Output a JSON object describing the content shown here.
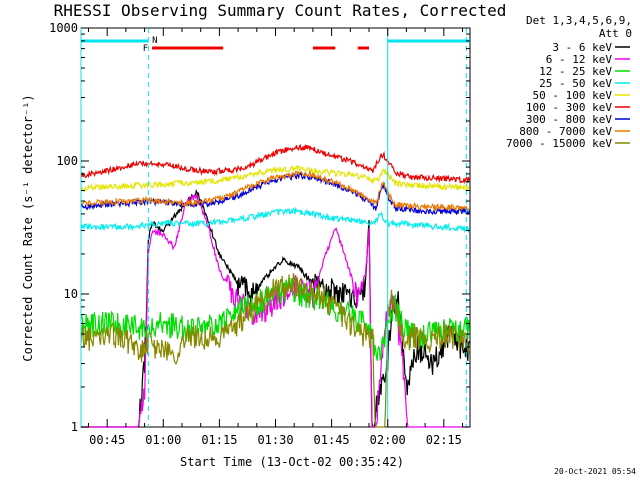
{
  "chart_data": {
    "type": "line",
    "title": "RHESSI Observing Summary Count Rates, Corrected",
    "xlabel": "Start Time (13-Oct-02 00:35:42)",
    "ylabel": "Corrected Count Rate (s⁻¹ detector⁻¹)",
    "y_scale": "log",
    "ylim": [
      1,
      1000
    ],
    "y_ticks": [
      "1",
      "10",
      "100",
      "1000"
    ],
    "xlim_min": [
      38,
      142
    ],
    "x_ticks": [
      "00:45",
      "01:00",
      "01:15",
      "01:30",
      "01:45",
      "02:00",
      "02:15"
    ],
    "x_tick_min": [
      45,
      60,
      75,
      90,
      105,
      120,
      135
    ],
    "legend_header": [
      "Det 1,3,4,5,6,9,",
      "Att 0"
    ],
    "legend_position": "right",
    "timestamp": "20-Oct-2021 05:54",
    "flags": {
      "night_label": "N",
      "flare_label": "F",
      "night_color": "#00e5ee",
      "flare_color": "#ee0000",
      "night_intervals": [
        [
          38,
          56
        ],
        [
          120,
          142
        ]
      ],
      "flare_intervals": [
        [
          57,
          76
        ],
        [
          100,
          106
        ],
        [
          112,
          115
        ]
      ],
      "dashed_lines_min": [
        56,
        141
      ],
      "solid_lines_min": [
        38,
        120
      ]
    },
    "series": [
      {
        "name": "3 - 6 keV",
        "color": "#000000",
        "x": [
          38,
          52,
          54,
          55,
          56,
          57,
          60,
          65,
          69,
          72,
          75,
          80,
          84,
          88,
          92,
          96,
          100,
          104,
          108,
          112,
          114,
          115,
          116,
          117,
          120,
          121,
          123,
          125,
          128,
          132,
          136,
          140
        ],
        "y": [
          0,
          0,
          1.5,
          3,
          25,
          35,
          30,
          45,
          60,
          35,
          20,
          12,
          10,
          14,
          18,
          16,
          12,
          11,
          10,
          9,
          12,
          35,
          0,
          1.5,
          3,
          8,
          9,
          2,
          4,
          3,
          5,
          4
        ]
      },
      {
        "name": "6 - 12 keV",
        "color": "#ee00ee",
        "x": [
          38,
          52,
          54,
          55,
          56,
          57,
          60,
          63,
          66,
          69,
          72,
          75,
          80,
          85,
          90,
          95,
          100,
          103,
          106,
          109,
          112,
          114,
          115,
          116,
          117,
          120,
          122,
          124,
          126,
          128,
          132,
          136,
          140
        ],
        "y": [
          0,
          0,
          1.2,
          2,
          20,
          30,
          28,
          22,
          50,
          55,
          33,
          15,
          9,
          7,
          9,
          12,
          10,
          18,
          32,
          18,
          9,
          14,
          30,
          0,
          1.2,
          8,
          9,
          3,
          0,
          0,
          0,
          0,
          0
        ]
      },
      {
        "name": "12 - 25 keV",
        "color": "#00dd00",
        "x": [
          38,
          50,
          56,
          58,
          62,
          68,
          74,
          78,
          82,
          86,
          90,
          94,
          98,
          102,
          106,
          110,
          114,
          116,
          117,
          120,
          122,
          124,
          126,
          130,
          135,
          141
        ],
        "y": [
          6,
          6,
          5.5,
          6,
          6,
          5.5,
          6,
          7,
          8,
          9,
          10,
          11,
          10,
          9,
          8,
          7,
          6,
          5,
          3,
          6,
          8,
          6,
          5,
          5,
          5.5,
          5.5
        ]
      },
      {
        "name": "25 - 50 keV",
        "color": "#00eeee",
        "x": [
          38,
          48,
          56,
          60,
          66,
          72,
          78,
          84,
          90,
          95,
          100,
          105,
          110,
          115,
          117,
          118,
          120,
          124,
          128,
          134,
          141
        ],
        "y": [
          32,
          32,
          33,
          34,
          34,
          34,
          36,
          38,
          41,
          42,
          40,
          37,
          36,
          34,
          36,
          40,
          34,
          34,
          33,
          32,
          31
        ]
      },
      {
        "name": "50 - 100 keV",
        "color": "#e5e500",
        "x": [
          38,
          45,
          50,
          56,
          60,
          66,
          72,
          78,
          84,
          90,
          96,
          100,
          104,
          108,
          114,
          117,
          118,
          119,
          120,
          122,
          126,
          130,
          136,
          141
        ],
        "y": [
          62,
          64,
          65,
          66,
          67,
          68,
          70,
          74,
          80,
          86,
          88,
          85,
          82,
          80,
          76,
          70,
          78,
          85,
          80,
          68,
          66,
          65,
          64,
          63
        ]
      },
      {
        "name": "100 - 300 keV",
        "color": "#ee0000",
        "x": [
          38,
          45,
          50,
          55,
          60,
          66,
          72,
          78,
          84,
          90,
          94,
          98,
          102,
          106,
          110,
          114,
          116,
          117,
          118,
          119,
          120,
          122,
          126,
          130,
          135,
          141
        ],
        "y": [
          78,
          85,
          92,
          97,
          95,
          88,
          83,
          85,
          95,
          115,
          125,
          127,
          118,
          108,
          100,
          88,
          84,
          95,
          108,
          110,
          100,
          82,
          76,
          75,
          74,
          72
        ]
      },
      {
        "name": "300 - 800 keV",
        "color": "#0000dd",
        "x": [
          38,
          45,
          50,
          56,
          60,
          66,
          72,
          78,
          84,
          90,
          96,
          100,
          104,
          110,
          114,
          117,
          118,
          119,
          120,
          122,
          126,
          130,
          136,
          141
        ],
        "y": [
          45,
          47,
          48,
          50,
          49,
          47,
          48,
          52,
          62,
          72,
          78,
          76,
          70,
          60,
          52,
          44,
          58,
          66,
          55,
          44,
          43,
          42,
          42,
          42
        ]
      },
      {
        "name": "800 - 7000 keV",
        "color": "#ee7700",
        "x": [
          38,
          45,
          50,
          56,
          60,
          66,
          72,
          78,
          84,
          90,
          96,
          100,
          104,
          110,
          114,
          117,
          118,
          119,
          120,
          122,
          126,
          130,
          136,
          141
        ],
        "y": [
          48,
          49,
          50,
          51,
          50,
          48,
          50,
          55,
          66,
          76,
          81,
          79,
          72,
          62,
          54,
          48,
          62,
          70,
          58,
          47,
          46,
          45,
          45,
          44
        ]
      },
      {
        "name": "7000 - 15000 keV",
        "color": "#888800",
        "x": [
          38,
          42,
          46,
          50,
          54,
          56,
          58,
          62,
          66,
          70,
          74,
          78,
          82,
          86,
          90,
          94,
          98,
          102,
          106,
          110,
          114,
          116,
          117,
          119,
          120,
          121,
          123,
          125,
          127,
          130,
          135,
          141
        ],
        "y": [
          5,
          4.5,
          5,
          4.5,
          3.5,
          4.5,
          4,
          3.5,
          4.5,
          5,
          4.5,
          5.5,
          7,
          9,
          11,
          12,
          11,
          10,
          8,
          6,
          5,
          4.5,
          0,
          0,
          7,
          9,
          6,
          4.5,
          5,
          4.5,
          5,
          4.5
        ]
      }
    ]
  }
}
